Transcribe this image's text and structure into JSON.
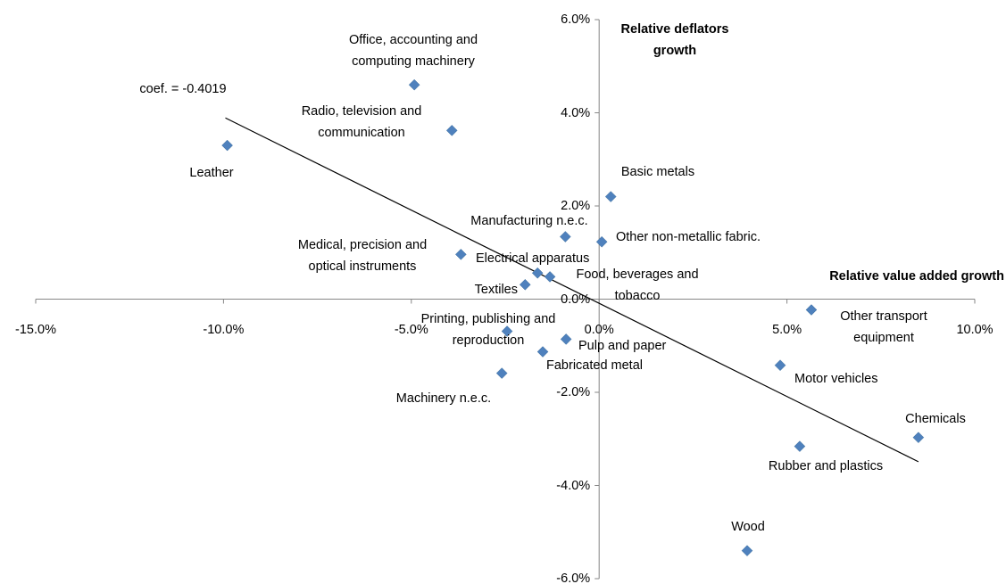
{
  "chart_data": {
    "type": "scatter",
    "x_title": "Relative value added growth",
    "y_title": "Relative deflators growth",
    "color": "#4f81bd",
    "x": [
      -4.92,
      -3.92,
      -9.9,
      0.31,
      -0.9,
      0.07,
      -3.68,
      -1.64,
      -1.31,
      -1.97,
      5.65,
      -2.45,
      -0.88,
      -1.5,
      -2.59,
      4.82,
      8.5,
      5.34,
      3.94
    ],
    "values": [
      4.6,
      3.62,
      3.3,
      2.2,
      1.34,
      1.23,
      0.96,
      0.56,
      0.48,
      0.31,
      -0.23,
      -0.69,
      -0.86,
      -1.13,
      -1.59,
      -1.42,
      -2.97,
      -3.16,
      -5.4
    ],
    "point_labels": [
      "Office, accounting and computing machinery",
      "Radio, television and communication",
      "Leather",
      "Basic metals",
      "Manufacturing n.e.c.",
      "Other non-metallic fabric.",
      "Medical, precision and optical instruments",
      "Electrical apparatus",
      "Food, beverages and tobacco",
      "Textiles",
      "Other transport equipment",
      "Printing, publishing and reproduction",
      "Pulp and paper",
      "Fabricated metal",
      "Machinery  n.e.c.",
      "Motor vehicles",
      "Chemicals",
      "Rubber and plastics",
      "Wood"
    ],
    "trendline": {
      "label": "coef. = -0.4019",
      "x": [
        -9.95,
        8.5
      ],
      "values": [
        3.89,
        -3.49
      ]
    },
    "xlim": [
      -15,
      10
    ],
    "ylim": [
      -6,
      6
    ],
    "xticks": [
      {
        "value": -15,
        "label": "-15.0%"
      },
      {
        "value": -10,
        "label": "-10.0%"
      },
      {
        "value": -5,
        "label": "-5.0%"
      },
      {
        "value": 0,
        "label": "0.0%"
      },
      {
        "value": 5,
        "label": "5.0%"
      },
      {
        "value": 10,
        "label": "10.0%"
      }
    ],
    "yticks": [
      {
        "value": -6,
        "label": "-6.0%"
      },
      {
        "value": -4,
        "label": "-4.0%"
      },
      {
        "value": -2,
        "label": "-2.0%"
      },
      {
        "value": 0,
        "label": "0.0%"
      },
      {
        "value": 2,
        "label": "2.0%"
      },
      {
        "value": 4,
        "label": "4.0%"
      },
      {
        "value": 6,
        "label": "6.0%"
      }
    ]
  }
}
